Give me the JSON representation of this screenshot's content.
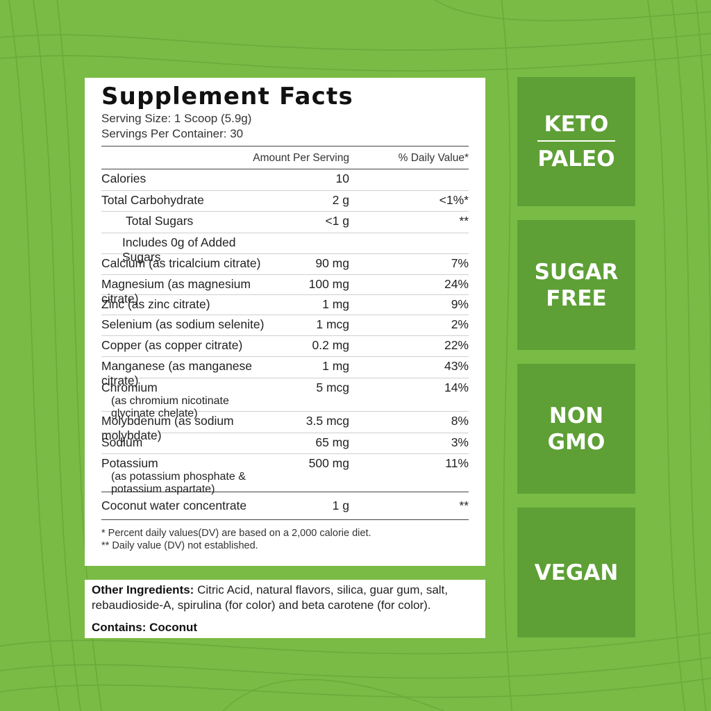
{
  "facts": {
    "title": "Supplement Facts",
    "serving_size": "Serving Size: 1 Scoop (5.9g)",
    "servings_per_container": "Servings Per Container: 30",
    "header_amount": "Amount Per Serving",
    "header_dv": "% Daily Value*",
    "rows": [
      {
        "name": "Calories",
        "amount": "10",
        "dv": ""
      },
      {
        "name": "Total Carbohydrate",
        "amount": "2 g",
        "dv": "<1%*"
      },
      {
        "name": "Total Sugars",
        "amount": "<1 g",
        "dv": "**"
      },
      {
        "name": "Includes 0g of Added Sugars",
        "amount": "",
        "dv": ""
      },
      {
        "name": "Calcium (as tricalcium citrate)",
        "amount": "90 mg",
        "dv": "7%"
      },
      {
        "name": "Magnesium (as magnesium citrate)",
        "amount": "100 mg",
        "dv": "24%"
      },
      {
        "name": "Zinc (as zinc citrate)",
        "amount": "1 mg",
        "dv": "9%"
      },
      {
        "name": "Selenium (as sodium selenite)",
        "amount": "1 mcg",
        "dv": "2%"
      },
      {
        "name": "Copper (as copper citrate)",
        "amount": "0.2 mg",
        "dv": "22%"
      },
      {
        "name": "Manganese (as manganese citrate)",
        "amount": "1 mg",
        "dv": "43%"
      },
      {
        "name": "Chromium",
        "sub": "(as chromium nicotinate glycinate chelate)",
        "amount": "5 mcg",
        "dv": "14%"
      },
      {
        "name": "Molybdenum (as sodium molybdate)",
        "amount": "3.5 mcg",
        "dv": "8%"
      },
      {
        "name": "Sodium",
        "amount": "65 mg",
        "dv": "3%"
      },
      {
        "name": "Potassium",
        "sub": "(as potassium phosphate & potassium aspartate)",
        "amount": "500 mg",
        "dv": "11%"
      },
      {
        "name": "Coconut water concentrate",
        "amount": "1 g",
        "dv": "**"
      }
    ],
    "footnote_1": "* Percent daily values(DV) are based on a 2,000 calorie diet.",
    "footnote_2": "** Daily value (DV) not established."
  },
  "ingredients": {
    "label": "Other Ingredients:",
    "text": " Citric Acid, natural flavors, silica, guar gum, salt, rebaudioside-A, spirulina (for color) and beta carotene (for color).",
    "contains": "Contains: Coconut"
  },
  "badges": {
    "keto": "KETO",
    "paleo": "PALEO",
    "sugar": "SUGAR",
    "free": "FREE",
    "non": "NON",
    "gmo": "GMO",
    "vegan": "VEGAN"
  },
  "colors": {
    "background": "#79bb45",
    "badge": "#5e9f36"
  }
}
